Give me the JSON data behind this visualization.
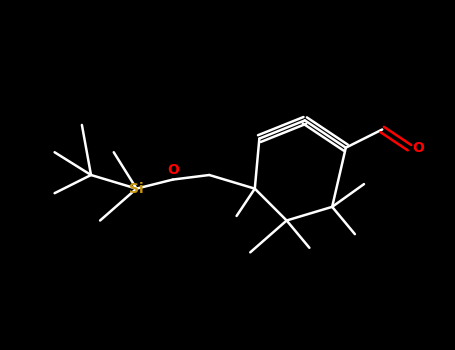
{
  "background_color": "#000000",
  "bond_color": "#ffffff",
  "si_color": "#c8960c",
  "o_color": "#ff0000",
  "line_width": 1.8,
  "atoms": {
    "Si": {
      "label": "Si",
      "color": "#c8960c"
    },
    "O": {
      "label": "O",
      "color": "#ff0000"
    }
  },
  "figsize": [
    4.55,
    3.5
  ],
  "dpi": 100
}
